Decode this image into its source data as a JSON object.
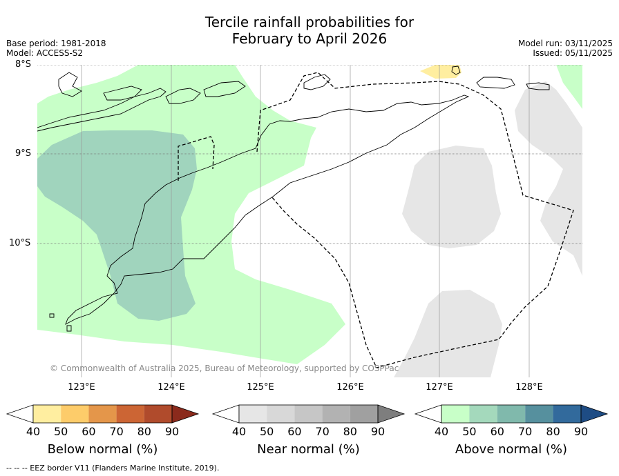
{
  "title_line1": "Tercile rainfall probabilities for",
  "title_line2": "February to April 2026",
  "base_period": "Base period: 1981-2018",
  "model": "Model: ACCESS-S2",
  "model_run": "Model run: 03/11/2025",
  "issued": "Issued: 05/11/2025",
  "lat_labels": [
    "8°S",
    "9°S",
    "10°S"
  ],
  "lon_labels": [
    "123°E",
    "124°E",
    "125°E",
    "126°E",
    "127°E",
    "128°E"
  ],
  "credit": "© Commonwealth of Australia 2025, Bureau of Meteorology, supported by COSPPac",
  "footer": "--  --  -- EEZ border V11 (Flanders Marine Institute, 2019).",
  "colorbars": [
    {
      "title": "Below normal (%)",
      "ticks": [
        "40",
        "50",
        "60",
        "70",
        "80",
        "90"
      ],
      "colors": [
        "#ffffff",
        "#ffeea0",
        "#fdcc6a",
        "#e4964a",
        "#cc6534",
        "#b04b2c",
        "#8b2a1c"
      ]
    },
    {
      "title": "Near normal (%)",
      "ticks": [
        "40",
        "50",
        "60",
        "70",
        "80",
        "90"
      ],
      "colors": [
        "#ffffff",
        "#e6e6e6",
        "#d8d8d8",
        "#c6c6c6",
        "#b2b2b2",
        "#a0a0a0",
        "#7e7e7e"
      ]
    },
    {
      "title": "Above normal (%)",
      "ticks": [
        "40",
        "50",
        "60",
        "70",
        "80",
        "90"
      ],
      "colors": [
        "#ffffff",
        "#c8ffc8",
        "#a4d9bc",
        "#80b9ac",
        "#56909e",
        "#326a9c",
        "#1e4c84"
      ]
    }
  ],
  "colors": {
    "above_40": "#c8ffc8",
    "above_50": "#a0d4bd",
    "near_40": "#e6e6e6",
    "below_40": "#ffeea0",
    "grid": "#999999"
  }
}
